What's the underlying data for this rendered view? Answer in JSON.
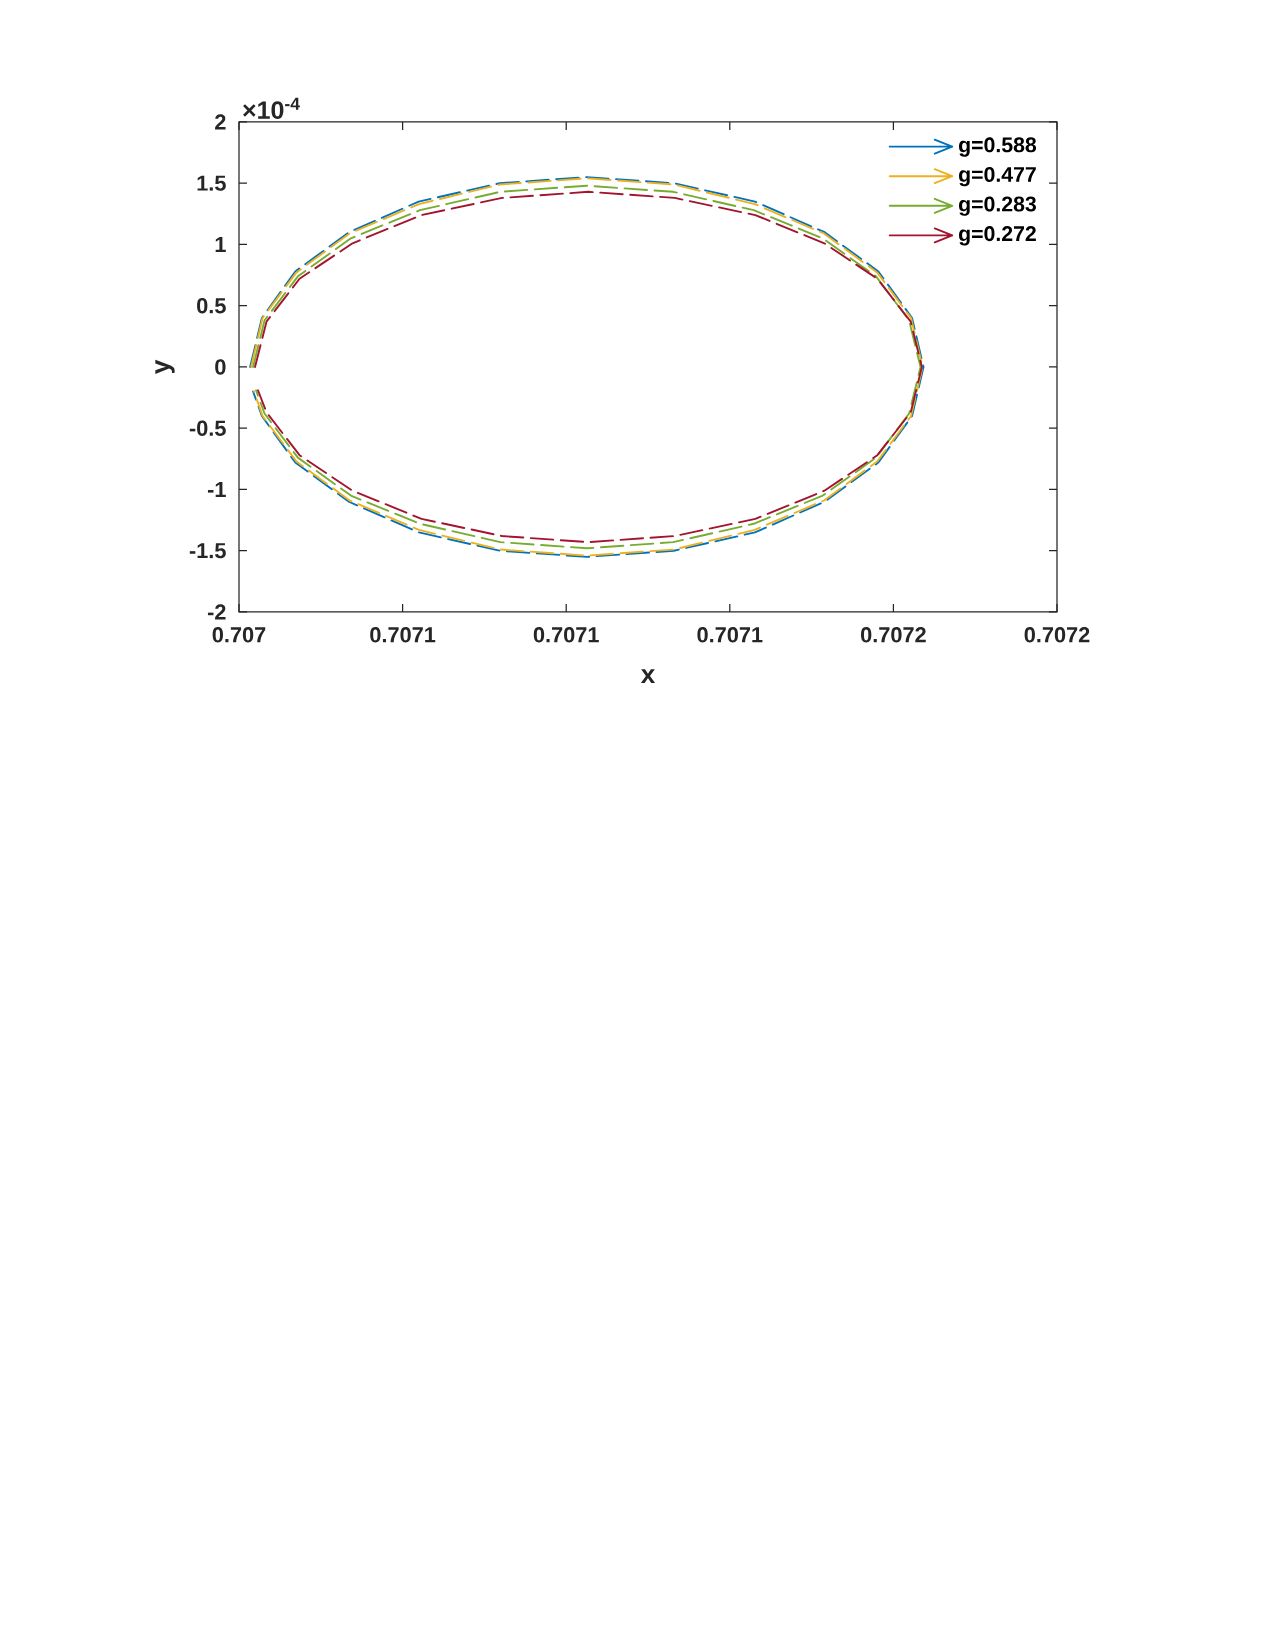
{
  "chart_data": {
    "type": "line",
    "xlabel": "x",
    "ylabel": "y",
    "annotations": [
      "×10$^{-4}$"
    ],
    "xlim": [
      0.707,
      0.70725
    ],
    "xticks": [
      0.707,
      {
        "value": 0.70705,
        "label": "0.7071"
      },
      0.7071,
      {
        "value": 0.70715,
        "label": "0.7071"
      },
      0.7072,
      {
        "value": 0.70725,
        "label": "0.7072"
      }
    ],
    "ylim": [
      -2,
      2
    ],
    "yticks": [
      -2,
      -1.5,
      -1,
      -0.5,
      0,
      0.5,
      1,
      1.5,
      2
    ],
    "legend": "top right",
    "line_style": "dashed",
    "series": [
      {
        "name": "g=0.588",
        "color": "#0072bd",
        "x": [
          0.7070034,
          0.707007,
          0.7070172,
          0.7070336,
          0.7070549,
          0.7070797,
          0.7071063,
          0.7071329,
          0.7071577,
          0.707179,
          0.7071954,
          0.7072057,
          0.7072092,
          0.7072057,
          0.7071954,
          0.707179,
          0.7071577,
          0.7071329,
          0.7071063,
          0.7070797,
          0.7070549,
          0.7070336,
          0.7070172,
          0.707007,
          0.7070043
        ],
        "values": [
          0,
          0.4,
          0.78,
          1.1,
          1.35,
          1.5,
          1.55,
          1.5,
          1.35,
          1.1,
          0.78,
          0.4,
          0,
          -0.4,
          -0.78,
          -1.1,
          -1.35,
          -1.5,
          -1.55,
          -1.5,
          -1.35,
          -1.1,
          -0.78,
          -0.4,
          -0.2
        ]
      },
      {
        "name": "g=0.477",
        "color": "#edb120",
        "x": [
          0.7070037,
          0.7070072,
          0.7070175,
          0.7070338,
          0.707055,
          0.7070798,
          0.7071063,
          0.7071329,
          0.7071576,
          0.7071788,
          0.7071951,
          0.7072054,
          0.7072089,
          0.7072054,
          0.7071951,
          0.7071788,
          0.7071576,
          0.7071329,
          0.7071063,
          0.7070798,
          0.707055,
          0.7070338,
          0.7070175,
          0.7070072,
          0.7070046
        ],
        "values": [
          0,
          0.4,
          0.77,
          1.09,
          1.33,
          1.49,
          1.54,
          1.49,
          1.33,
          1.09,
          0.77,
          0.4,
          0,
          -0.4,
          -0.77,
          -1.09,
          -1.33,
          -1.49,
          -1.54,
          -1.49,
          -1.33,
          -1.09,
          -0.77,
          -0.4,
          -0.2
        ]
      },
      {
        "name": "g=0.283",
        "color": "#77ac30",
        "x": [
          0.7070043,
          0.7070078,
          0.707018,
          0.7070342,
          0.7070553,
          0.7070799,
          0.7071063,
          0.7071327,
          0.7071573,
          0.7071784,
          0.7071947,
          0.7072048,
          0.7072083,
          0.7072048,
          0.7071947,
          0.7071784,
          0.7071573,
          0.7071327,
          0.7071063,
          0.7070799,
          0.7070553,
          0.7070342,
          0.707018,
          0.7070078,
          0.7070052
        ],
        "values": [
          0,
          0.38,
          0.74,
          1.05,
          1.28,
          1.43,
          1.48,
          1.43,
          1.28,
          1.05,
          0.74,
          0.38,
          0,
          -0.38,
          -0.74,
          -1.05,
          -1.28,
          -1.43,
          -1.48,
          -1.43,
          -1.28,
          -1.05,
          -0.74,
          -0.38,
          -0.19
        ]
      },
      {
        "name": "g=0.272",
        "color": "#a2142f",
        "x": [
          0.7070049,
          0.7070084,
          0.7070185,
          0.7070347,
          0.7070558,
          0.7070804,
          0.7071068,
          0.7071332,
          0.7071578,
          0.7071789,
          0.7071951,
          0.7072053,
          0.7072087,
          0.7072053,
          0.7071951,
          0.7071789,
          0.7071578,
          0.7071332,
          0.7071068,
          0.7070804,
          0.7070558,
          0.7070347,
          0.7070185,
          0.7070084,
          0.7070058
        ],
        "values": [
          0,
          0.37,
          0.72,
          1.01,
          1.24,
          1.38,
          1.43,
          1.38,
          1.24,
          1.01,
          0.72,
          0.37,
          0,
          -0.37,
          -0.72,
          -1.01,
          -1.24,
          -1.38,
          -1.43,
          -1.38,
          -1.24,
          -1.01,
          -0.72,
          -0.37,
          -0.19
        ]
      }
    ]
  }
}
